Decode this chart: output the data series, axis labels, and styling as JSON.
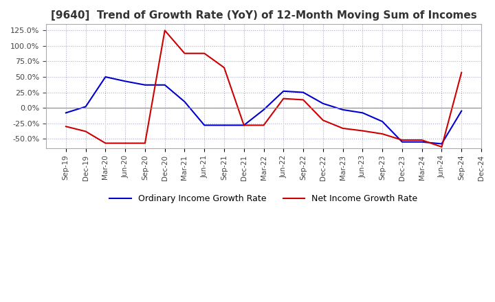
{
  "title": "[9640]  Trend of Growth Rate (YoY) of 12-Month Moving Sum of Incomes",
  "title_fontsize": 11,
  "ylim": [
    -65,
    135
  ],
  "yticks": [
    -50,
    -25,
    0,
    25,
    50,
    75,
    100,
    125
  ],
  "background_color": "#ffffff",
  "grid_color": "#aaaacc",
  "legend_labels": [
    "Ordinary Income Growth Rate",
    "Net Income Growth Rate"
  ],
  "line_colors": [
    "#0000cc",
    "#cc0000"
  ],
  "x_labels": [
    "Sep-19",
    "Dec-19",
    "Mar-20",
    "Jun-20",
    "Sep-20",
    "Dec-20",
    "Mar-21",
    "Jun-21",
    "Sep-21",
    "Dec-21",
    "Mar-22",
    "Jun-22",
    "Sep-22",
    "Dec-22",
    "Mar-23",
    "Jun-23",
    "Sep-23",
    "Dec-23",
    "Mar-24",
    "Jun-24",
    "Sep-24",
    "Dec-24"
  ],
  "ordinary_income": [
    -8,
    2,
    50,
    43,
    37,
    37,
    10,
    -28,
    -28,
    -28,
    -3,
    27,
    25,
    7,
    -3,
    -8,
    -22,
    -55,
    -55,
    -58,
    -5,
    null
  ],
  "net_income": [
    -30,
    -38,
    -57,
    -57,
    -57,
    125,
    88,
    88,
    65,
    -28,
    -28,
    15,
    13,
    -20,
    -33,
    -37,
    -42,
    -52,
    -52,
    -63,
    57,
    null
  ]
}
